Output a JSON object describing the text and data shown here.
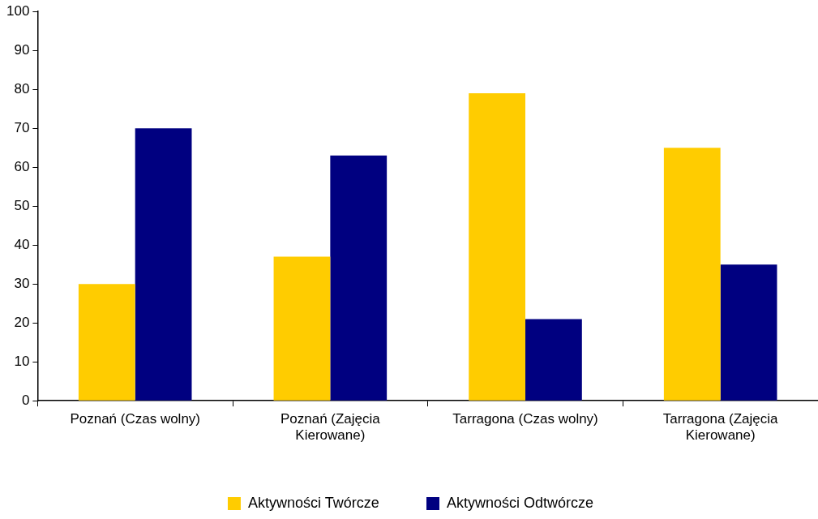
{
  "chart_data": {
    "type": "bar",
    "categories": [
      "Poznań (Czas wolny)",
      "Poznań (Zajęcia Kierowane)",
      "Tarragona (Czas wolny)",
      "Tarragona (Zajęcia Kierowane)"
    ],
    "series": [
      {
        "name": "Aktywności Twórcze",
        "color": "#ffcc00",
        "values": [
          30,
          37,
          79,
          65
        ]
      },
      {
        "name": "Aktywności Odtwórcze",
        "color": "#000080",
        "values": [
          70,
          63,
          21,
          35
        ]
      }
    ],
    "ylim": [
      0,
      100
    ],
    "yticks": [
      0,
      10,
      20,
      30,
      40,
      50,
      60,
      70,
      80,
      90,
      100
    ],
    "grid": false,
    "legend": "bottom"
  }
}
